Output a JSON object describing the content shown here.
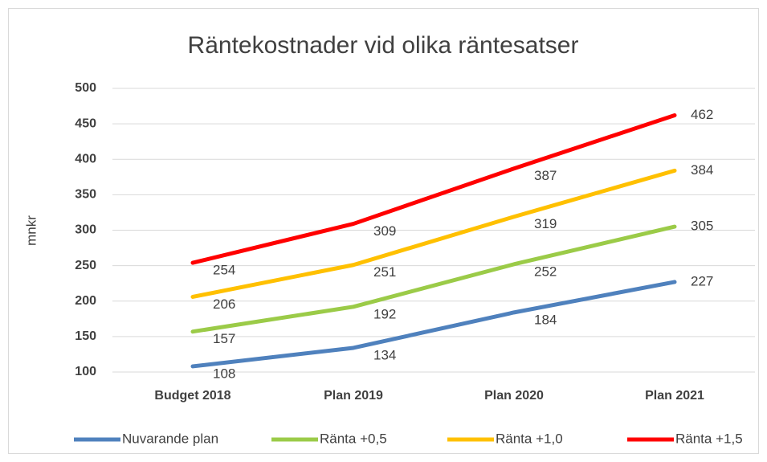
{
  "chart_data": {
    "type": "line",
    "title": "Räntekostnader vid olika räntesatser",
    "y_label": "mnkr",
    "categories": [
      "Budget 2018",
      "Plan 2019",
      "Plan 2020",
      "Plan 2021"
    ],
    "series": [
      {
        "name": "Nuvarande plan",
        "color": "#4f81bd",
        "values": [
          108,
          134,
          184,
          227
        ]
      },
      {
        "name": "Ränta +0,5",
        "color": "#9bcb48",
        "values": [
          157,
          192,
          252,
          305
        ]
      },
      {
        "name": "Ränta +1,0",
        "color": "#ffc000",
        "values": [
          206,
          251,
          319,
          384
        ]
      },
      {
        "name": "Ränta +1,5",
        "color": "#ff0000",
        "values": [
          254,
          309,
          387,
          462
        ]
      }
    ],
    "ylim": [
      100,
      500
    ],
    "yticks": [
      100,
      150,
      200,
      250,
      300,
      350,
      400,
      450,
      500
    ],
    "grid": true,
    "legend": "bottom"
  }
}
